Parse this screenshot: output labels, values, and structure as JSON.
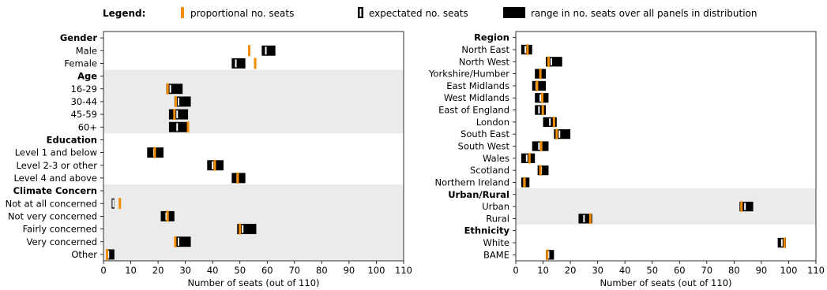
{
  "legend": {
    "title": "Legend:",
    "proportional": "proportional no. seats",
    "expected": "expectated no. seats",
    "range": "range in no. seats over all panels in distribution"
  },
  "colors": {
    "proportional": "#f28c00",
    "range": "#000000",
    "shade": "#ebebeb",
    "expected": "#ffffff"
  },
  "chart_data": [
    {
      "type": "range",
      "xlabel": "Number of seats (out of 110)",
      "xlim": [
        0,
        110
      ],
      "xticks": [
        0,
        10,
        20,
        30,
        40,
        50,
        60,
        70,
        80,
        90,
        100,
        110
      ],
      "groups": [
        {
          "name": "Gender",
          "shaded": false,
          "rows": [
            {
              "label": "Male",
              "min": 58,
              "max": 63,
              "expected": 59.5,
              "proportional": 53.4
            },
            {
              "label": "Female",
              "min": 47,
              "max": 52,
              "expected": 48.5,
              "proportional": 55.6
            }
          ]
        },
        {
          "name": "Age",
          "shaded": true,
          "rows": [
            {
              "label": "16-29",
              "min": 23,
              "max": 29,
              "expected": 24.5,
              "proportional": 23.5
            },
            {
              "label": "30-44",
              "min": 26,
              "max": 32,
              "expected": 27.5,
              "proportional": 26.5
            },
            {
              "label": "45-59",
              "min": 24,
              "max": 31,
              "expected": 27,
              "proportional": 26
            },
            {
              "label": "60+",
              "min": 24,
              "max": 31,
              "expected": 27,
              "proportional": 31
            }
          ]
        },
        {
          "name": "Education",
          "shaded": false,
          "rows": [
            {
              "label": "Level 1 and below",
              "min": 16,
              "max": 22,
              "expected": 18.5,
              "proportional": 18.8
            },
            {
              "label": "Level 2-3 or other",
              "min": 38,
              "max": 44,
              "expected": 40,
              "proportional": 40.8
            },
            {
              "label": "Level 4 and above",
              "min": 47,
              "max": 52,
              "expected": 49,
              "proportional": 49.2
            }
          ]
        },
        {
          "name": "Climate Concern",
          "shaded": true,
          "rows": [
            {
              "label": "Not at all concerned",
              "min": 3,
              "max": 4,
              "expected": 3.6,
              "proportional": 6
            },
            {
              "label": "Not very concerned",
              "min": 21,
              "max": 26,
              "expected": 23,
              "proportional": 23.5
            },
            {
              "label": "Fairly concerned",
              "min": 49,
              "max": 56,
              "expected": 51,
              "proportional": 50
            },
            {
              "label": "Very concerned",
              "min": 26,
              "max": 32,
              "expected": 27.5,
              "proportional": 26.3
            },
            {
              "label": "Other",
              "min": 1,
              "max": 4,
              "expected": 1.8,
              "proportional": 1.3
            }
          ]
        }
      ]
    },
    {
      "type": "range",
      "xlabel": "Number of seats (out of 110)",
      "xlim": [
        0,
        110
      ],
      "xticks": [
        0,
        10,
        20,
        30,
        40,
        50,
        60,
        70,
        80,
        90,
        100,
        110
      ],
      "groups": [
        {
          "name": "Region",
          "shaded": false,
          "rows": [
            {
              "label": "North East",
              "min": 2,
              "max": 6,
              "expected": 3.5,
              "proportional": 4.3
            },
            {
              "label": "North West",
              "min": 11,
              "max": 17,
              "expected": 13,
              "proportional": 12
            },
            {
              "label": "Yorkshire/Humber",
              "min": 7,
              "max": 11,
              "expected": 9,
              "proportional": 9
            },
            {
              "label": "East Midlands",
              "min": 6,
              "max": 11,
              "expected": 7.5,
              "proportional": 7.8
            },
            {
              "label": "West Midlands",
              "min": 7,
              "max": 12,
              "expected": 9,
              "proportional": 9.7
            },
            {
              "label": "East of England",
              "min": 7,
              "max": 11,
              "expected": 8.5,
              "proportional": 9.9
            },
            {
              "label": "London",
              "min": 10,
              "max": 15,
              "expected": 12.5,
              "proportional": 14
            },
            {
              "label": "South East",
              "min": 14,
              "max": 20,
              "expected": 16,
              "proportional": 15
            },
            {
              "label": "South West",
              "min": 6,
              "max": 12,
              "expected": 8.5,
              "proportional": 9.3
            },
            {
              "label": "Wales",
              "min": 2,
              "max": 7,
              "expected": 4,
              "proportional": 5
            },
            {
              "label": "Scotland",
              "min": 8,
              "max": 12,
              "expected": 9.3,
              "proportional": 9
            },
            {
              "label": "Northern Ireland",
              "min": 2,
              "max": 5,
              "expected": 3,
              "proportional": 3.2
            }
          ]
        },
        {
          "name": "Urban/Rural",
          "shaded": true,
          "rows": [
            {
              "label": "Urban",
              "min": 82,
              "max": 87,
              "expected": 84,
              "proportional": 82.7
            },
            {
              "label": "Rural",
              "min": 23,
              "max": 28,
              "expected": 25,
              "proportional": 27.3
            }
          ]
        },
        {
          "name": "Ethnicity",
          "shaded": false,
          "rows": [
            {
              "label": "White",
              "min": 96,
              "max": 99,
              "expected": 97.5,
              "proportional": 98.5
            },
            {
              "label": "BAME",
              "min": 11,
              "max": 14,
              "expected": 12,
              "proportional": 11.5
            }
          ]
        }
      ]
    }
  ]
}
